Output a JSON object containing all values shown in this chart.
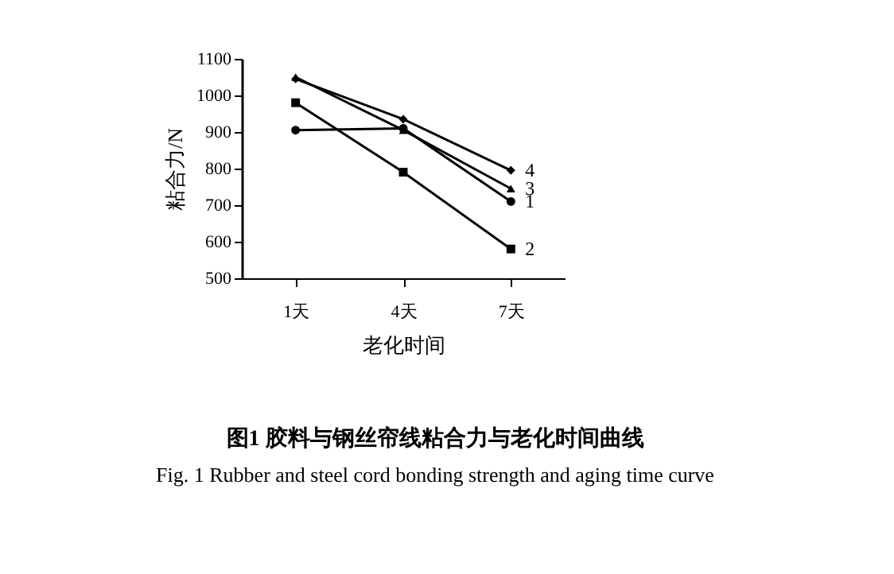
{
  "chart_data": {
    "type": "line",
    "title": "图1  胶料与钢丝帘线粘合力与老化时间曲线",
    "subtitle": "Fig. 1  Rubber and steel cord bonding strength and aging time curve",
    "xlabel": "老化时间",
    "ylabel": "粘合力/N",
    "categories": [
      "1天",
      "4天",
      "7天"
    ],
    "ylim": [
      500,
      1100
    ],
    "yticks": [
      500,
      600,
      700,
      800,
      900,
      1000,
      1100
    ],
    "grid": false,
    "legend": false,
    "line_style": "solid",
    "series": [
      {
        "name": "1",
        "color": "#000000",
        "marker": "circle",
        "values": [
          905,
          910,
          710
        ]
      },
      {
        "name": "2",
        "color": "#000000",
        "marker": "square",
        "values": [
          980,
          790,
          580
        ]
      },
      {
        "name": "3",
        "color": "#000000",
        "marker": "triangle",
        "values": [
          1050,
          905,
          745
        ]
      },
      {
        "name": "4",
        "color": "#000000",
        "marker": "diamond",
        "values": [
          1045,
          935,
          795
        ]
      }
    ]
  }
}
